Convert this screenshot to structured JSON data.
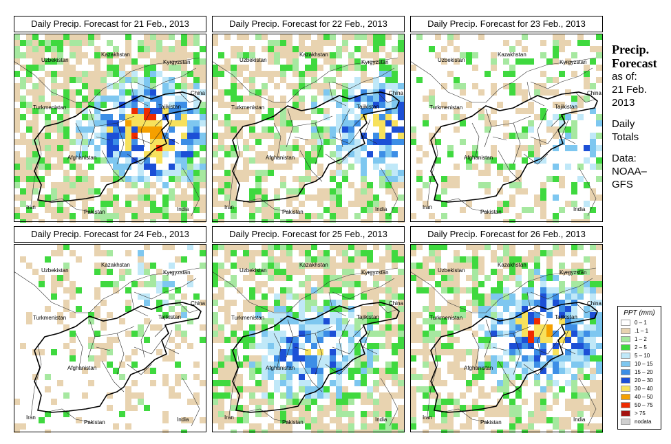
{
  "panels": [
    {
      "title": "Daily Precip. Forecast for  21 Feb., 2013",
      "seed": 11,
      "heavy_center": [
        0.69,
        0.5
      ],
      "intensity": 1.0,
      "coverage": 0.62
    },
    {
      "title": "Daily Precip. Forecast for  22 Feb., 2013",
      "seed": 22,
      "heavy_center": [
        0.88,
        0.48
      ],
      "intensity": 0.75,
      "coverage": 0.55
    },
    {
      "title": "Daily Precip. Forecast for  23 Feb., 2013",
      "seed": 33,
      "heavy_center": [
        0.93,
        0.6
      ],
      "intensity": 0.35,
      "coverage": 0.22
    },
    {
      "title": "Daily Precip. Forecast for  24 Feb., 2013",
      "seed": 44,
      "heavy_center": [
        0.8,
        0.2
      ],
      "intensity": 0.2,
      "coverage": 0.18
    },
    {
      "title": "Daily Precip. Forecast for  25 Feb., 2013",
      "seed": 55,
      "heavy_center": [
        0.5,
        0.55
      ],
      "intensity": 0.6,
      "coverage": 0.6
    },
    {
      "title": "Daily Precip. Forecast for  26 Feb., 2013",
      "seed": 66,
      "heavy_center": [
        0.68,
        0.45
      ],
      "intensity": 0.85,
      "coverage": 0.58
    }
  ],
  "countries": {
    "kazakhstan": "Kazakhstan",
    "uzbekistan": "Uzbekistan",
    "kyrgyzstan": "Kyrgyzstan",
    "china": "China",
    "turkmenistan": "Turkmenistan",
    "tajikistan": "Tajikistan",
    "afghanistan": "Afghanistan",
    "iran": "Iran",
    "pakistan": "Pakistan",
    "india": "India"
  },
  "info": {
    "title_line1": "Precip.",
    "title_line2": "Forecast",
    "as_of": "as of:",
    "date_line1": "21 Feb.",
    "date_line2": "2013",
    "daily": "Daily",
    "totals": "Totals",
    "data": "Data:",
    "source_line1": "NOAA–",
    "source_line2": "GFS"
  },
  "legend": {
    "title": "PPT (mm)",
    "items": [
      {
        "label": "0 – 1",
        "color": "#ffffff"
      },
      {
        "label": ".1 – 1",
        "color": "#e8d3b0"
      },
      {
        "label": "1 – 2",
        "color": "#a6e8a0"
      },
      {
        "label": "2 – 5",
        "color": "#3fd93f"
      },
      {
        "label": "5 – 10",
        "color": "#c0e8f8"
      },
      {
        "label": "10 – 15",
        "color": "#7ec7f0"
      },
      {
        "label": "15 – 20",
        "color": "#3d8ee6"
      },
      {
        "label": "20 – 30",
        "color": "#1c4fd6"
      },
      {
        "label": "30 – 40",
        "color": "#f7e15c"
      },
      {
        "label": "40 – 50",
        "color": "#f5a000"
      },
      {
        "label": "50 – 75",
        "color": "#ee2b00"
      },
      {
        "label": "> 75",
        "color": "#a4120f"
      },
      {
        "label": "nodata",
        "color": "#cfcfcf"
      }
    ]
  }
}
